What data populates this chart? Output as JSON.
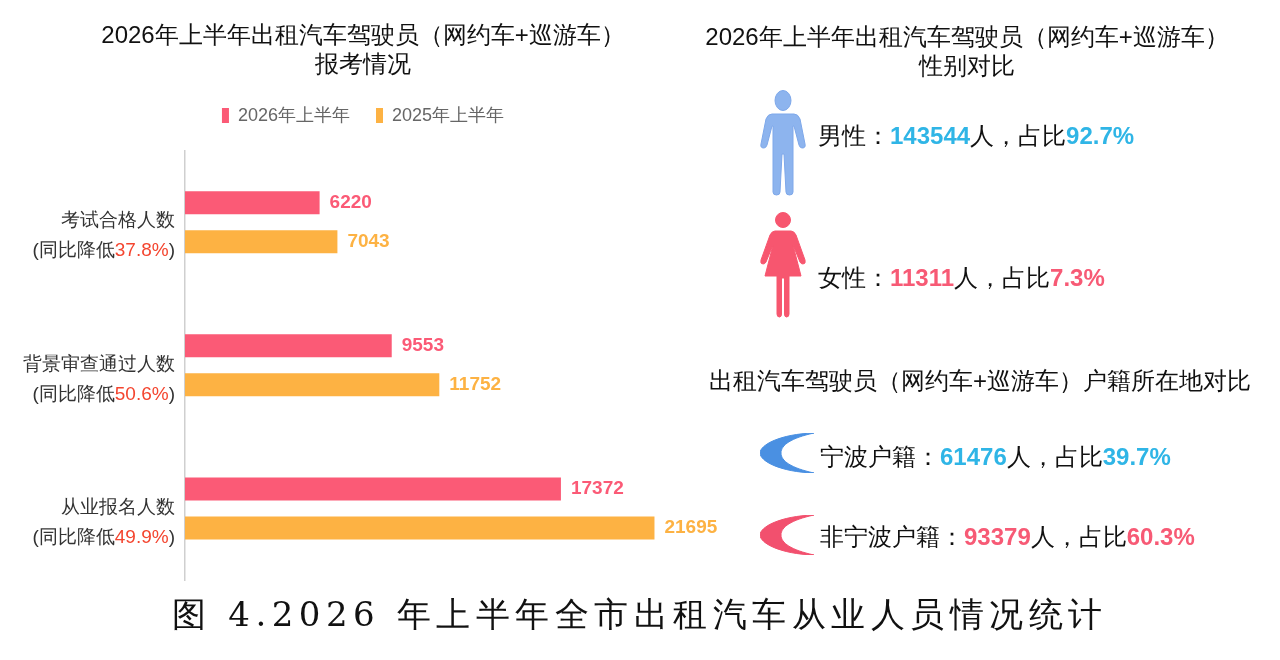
{
  "chart_data": [
    {
      "type": "bar",
      "orientation": "horizontal",
      "title": "2026年上半年出租汽车驾驶员（网约车+巡游车）报考情况",
      "categories": [
        "考试合格人数\n(同比降低37.8%)",
        "背景审查通过人数\n(同比降低50.6%)",
        "从业报名人数\n(同比降低49.9%)"
      ],
      "series": [
        {
          "name": "2026年上半年",
          "color": "#fb5a76",
          "values": [
            6220,
            9553,
            17372
          ]
        },
        {
          "name": "2025年上半年",
          "color": "#fdb243",
          "values": [
            7043,
            11752,
            21695
          ]
        }
      ],
      "data_labels": true,
      "legend": "top",
      "annotations": [
        "图 4.2026 年上半年全市出租汽车从业人员情况统计"
      ]
    },
    {
      "type": "other",
      "title": "2026年上半年出租汽车驾驶员（网约车+巡游车）性别对比",
      "annotations": [
        "男性：143544人，占比92.7%",
        "女性：11311人，占比7.3%"
      ],
      "colors": [
        "#2fb5e6",
        "#f75a75"
      ]
    },
    {
      "type": "other",
      "title": "出租汽车驾驶员（网约车+巡游车）户籍所在地对比",
      "annotations": [
        "宁波户籍：61476人，占比39.7%",
        "非宁波户籍：93379人，占比60.3%"
      ],
      "colors": [
        "#2fb5e6",
        "#f75a75"
      ]
    }
  ]
}
